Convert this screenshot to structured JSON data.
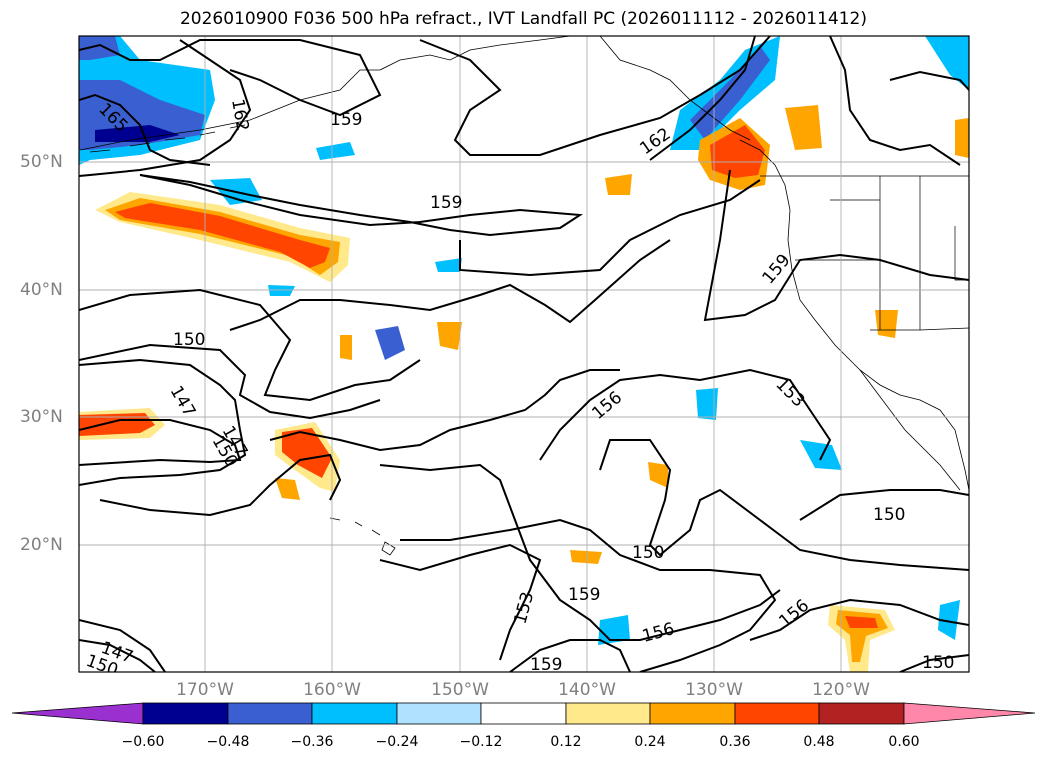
{
  "title": "2026010900 F036 500 hPa refract., IVT Landfall PC (2026011112 - 2026011412)",
  "lat_labels": [
    "50°N",
    "40°N",
    "30°N",
    "20°N"
  ],
  "lon_labels": [
    "170°W",
    "160°W",
    "150°W",
    "140°W",
    "130°W",
    "120°W"
  ],
  "contour_labels": [
    "165",
    "162",
    "159",
    "159",
    "162",
    "159",
    "150",
    "147",
    "147",
    "150",
    "156",
    "153",
    "150",
    "150",
    "159",
    "153",
    "156",
    "159",
    "156",
    "147",
    "150",
    "150",
    "159"
  ],
  "colorbar": {
    "ticks": [
      "−0.60",
      "−0.48",
      "−0.36",
      "−0.24",
      "−0.12",
      "0.12",
      "0.24",
      "0.36",
      "0.48",
      "0.60"
    ],
    "colors": [
      "#9b30d0",
      "#000090",
      "#3a5fd0",
      "#00bfff",
      "#b0e2ff",
      "#ffffff",
      "#ffe98a",
      "#ffa500",
      "#ff4500",
      "#b22222",
      "#ff88aa"
    ]
  },
  "colors": {
    "land_border": "#000000",
    "grid": "#b0b0b0",
    "contour": "#000000"
  }
}
